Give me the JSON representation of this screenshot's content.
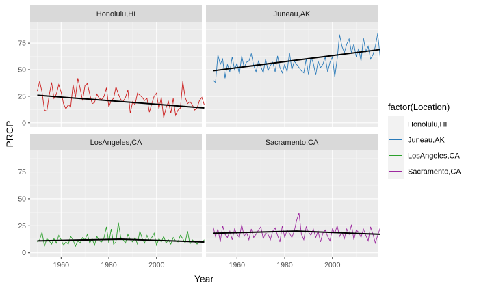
{
  "chart_data": {
    "type": "line",
    "xlabel": "Year",
    "ylabel": "PRCP",
    "xlim": [
      1947,
      2019
    ],
    "ylim": [
      -4,
      95
    ],
    "x_ticks": [
      1960,
      1980,
      2000
    ],
    "y_ticks": [
      0,
      25,
      50,
      75
    ],
    "grid": true,
    "legend": {
      "title": "factor(Location)",
      "placement": "right",
      "entries": [
        "Honolulu,HI",
        "Juneau,AK",
        "LosAngeles,CA",
        "Sacramento,CA"
      ]
    },
    "series": [
      {
        "name": "Honolulu,HI",
        "color": "#F8766D",
        "line_color": "#CC2020",
        "x_start": 1950,
        "x_step": 1,
        "values": [
          30,
          39,
          29,
          12,
          11,
          26,
          38,
          23,
          27,
          36,
          29,
          18,
          13,
          17,
          15,
          36,
          24,
          42,
          32,
          21,
          35,
          37,
          27,
          18,
          19,
          27,
          23,
          22,
          25,
          33,
          15,
          21,
          23,
          34,
          27,
          22,
          20,
          24,
          31,
          9,
          20,
          17,
          28,
          26,
          24,
          21,
          23,
          10,
          18,
          25,
          28,
          13,
          24,
          5,
          14,
          20,
          9,
          23,
          7,
          12,
          14,
          39,
          24,
          18,
          20,
          17,
          12,
          14,
          21,
          24,
          17
        ],
        "trend": [
          26,
          14
        ]
      },
      {
        "name": "Juneau,AK",
        "color": "#2A7AB9",
        "x_start": 1950,
        "x_step": 1,
        "values": [
          40,
          38,
          64,
          55,
          60,
          42,
          55,
          48,
          62,
          50,
          56,
          46,
          63,
          52,
          57,
          58,
          65,
          54,
          48,
          58,
          53,
          47,
          60,
          49,
          54,
          57,
          48,
          63,
          52,
          47,
          55,
          48,
          66,
          50,
          58,
          55,
          52,
          49,
          47,
          60,
          45,
          62,
          56,
          45,
          58,
          52,
          55,
          62,
          48,
          57,
          62,
          43,
          60,
          83,
          72,
          66,
          74,
          79,
          66,
          74,
          62,
          70,
          58,
          80,
          67,
          72,
          60,
          64,
          72,
          84,
          62
        ],
        "trend": [
          49,
          69
        ]
      },
      {
        "name": "LosAngeles,CA",
        "color": "#2CA02C",
        "x_start": 1950,
        "x_step": 1,
        "values": [
          10,
          12,
          19,
          6,
          13,
          11,
          8,
          13,
          9,
          16,
          12,
          7,
          10,
          8,
          15,
          12,
          6,
          11,
          9,
          14,
          12,
          17,
          9,
          13,
          7,
          15,
          11,
          10,
          14,
          24,
          9,
          22,
          8,
          10,
          28,
          14,
          12,
          9,
          17,
          12,
          10,
          14,
          8,
          20,
          13,
          9,
          16,
          11,
          14,
          18,
          7,
          13,
          10,
          15,
          9,
          12,
          8,
          14,
          11,
          10,
          16,
          13,
          9,
          20,
          8,
          12,
          10,
          8,
          11,
          9,
          12
        ],
        "trend": [
          11,
          12.5,
          10
        ]
      },
      {
        "name": "Sacramento,CA",
        "color": "#9E2AA0",
        "x_start": 1950,
        "x_step": 1,
        "values": [
          24,
          15,
          22,
          10,
          25,
          17,
          14,
          20,
          12,
          22,
          17,
          14,
          26,
          15,
          19,
          12,
          22,
          14,
          17,
          21,
          24,
          13,
          18,
          17,
          12,
          20,
          23,
          16,
          10,
          25,
          14,
          21,
          18,
          14,
          20,
          30,
          37,
          17,
          12,
          24,
          19,
          16,
          22,
          14,
          20,
          10,
          18,
          21,
          15,
          11,
          22,
          18,
          25,
          15,
          19,
          13,
          22,
          17,
          26,
          12,
          21,
          19,
          14,
          22,
          16,
          11,
          24,
          17,
          9,
          16,
          23
        ],
        "trend": [
          18,
          20,
          17
        ]
      }
    ]
  }
}
